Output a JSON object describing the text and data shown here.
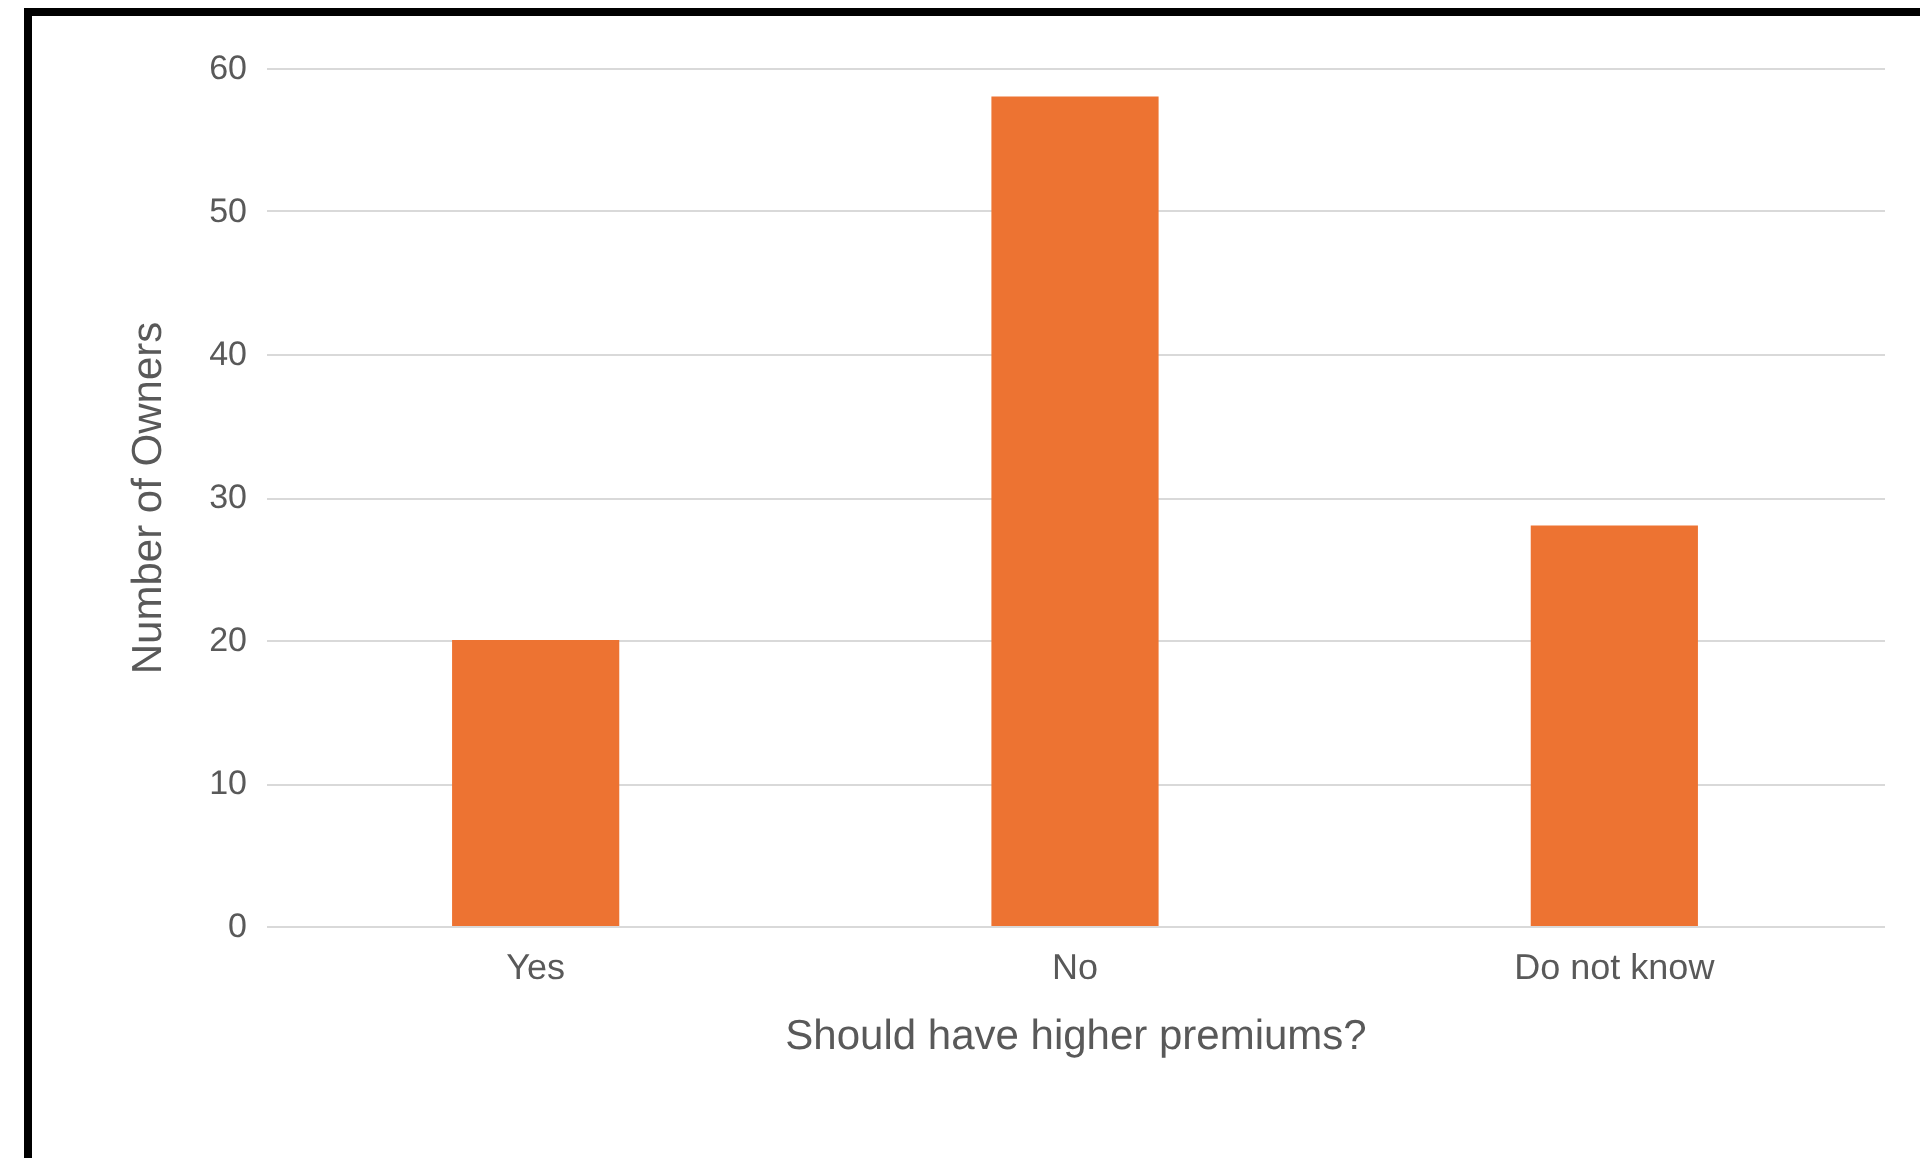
{
  "chart_data": {
    "type": "bar",
    "xlabel": "Should have higher premiums?",
    "ylabel": "Number of Owners",
    "categories": [
      "Yes",
      "No",
      "Do not know"
    ],
    "series": [
      {
        "color": "#ed7332",
        "values": [
          20,
          58,
          28
        ]
      }
    ],
    "ylim": [
      0,
      60
    ],
    "yticks": [
      0,
      10,
      20,
      30,
      40,
      50,
      60
    ],
    "grid": "y"
  }
}
